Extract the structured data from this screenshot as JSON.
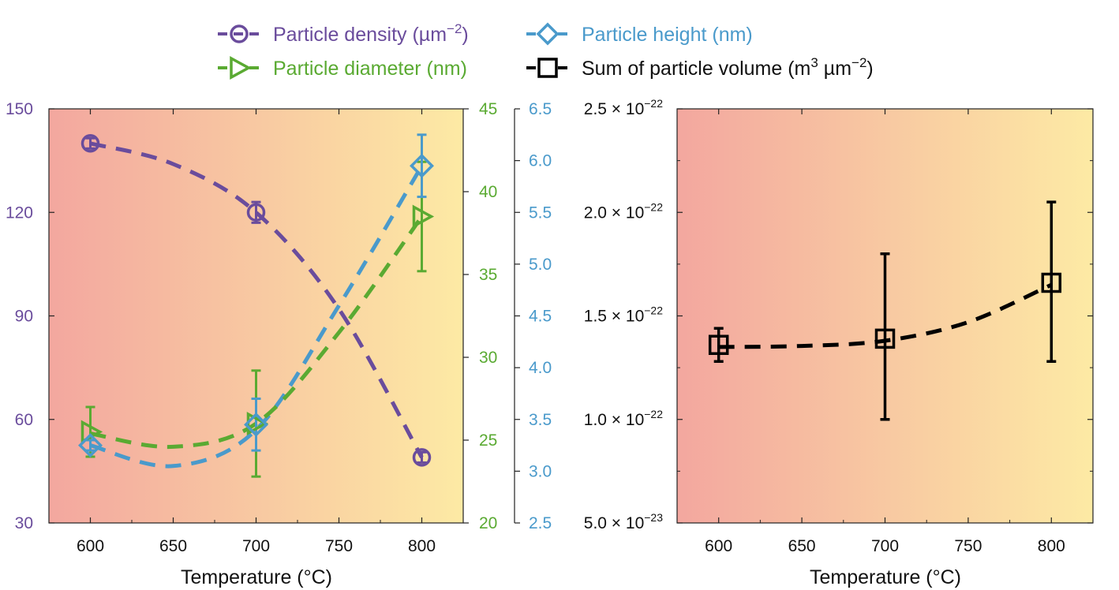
{
  "colors": {
    "density": "#6a4c9c",
    "diameter": "#5aaa32",
    "height": "#4a9acb",
    "volume": "#000000",
    "bg_left": "#f3a79f",
    "bg_right": "#fdeaa4"
  },
  "legend": {
    "density": "Particle density (µm",
    "density_exp": "−2",
    "density_close": ")",
    "height": "Particle height (nm)",
    "diameter": "Particle diameter (nm)",
    "volume": "Sum of particle volume (m",
    "volume_exp1": "3",
    "volume_mid": " µm",
    "volume_exp2": "−2",
    "volume_close": ")"
  },
  "chart_data": [
    {
      "type": "line",
      "xlabel": "Temperature (°C)",
      "xlim": [
        575,
        825
      ],
      "x_ticks": [
        600,
        650,
        700,
        750,
        800
      ],
      "x": [
        600,
        700,
        800
      ],
      "axes": {
        "density": {
          "ylim": [
            30,
            150
          ],
          "ticks": [
            30,
            60,
            90,
            120,
            150
          ]
        },
        "diameter": {
          "ylim": [
            20,
            45
          ],
          "ticks": [
            20,
            25,
            30,
            35,
            40,
            45
          ]
        },
        "height": {
          "ylim": [
            2.5,
            6.5
          ],
          "ticks": [
            "2.5",
            "3.0",
            "3.5",
            "4.0",
            "4.5",
            "5.0",
            "5.5",
            "6.0",
            "6.5"
          ]
        }
      },
      "series": [
        {
          "name": "Particle density (µm−2)",
          "key": "density",
          "axis": "density",
          "marker": "circle",
          "values": [
            140,
            120,
            49
          ],
          "err": [
            1.5,
            3,
            1.5
          ],
          "fit": [
            [
              600,
              140
            ],
            [
              650,
              134
            ],
            [
              700,
              120
            ],
            [
              750,
              92
            ],
            [
              800,
              49
            ]
          ]
        },
        {
          "name": "Particle diameter (nm)",
          "key": "diameter",
          "axis": "diameter",
          "marker": "triangle",
          "values": [
            25.5,
            26,
            38.5
          ],
          "err": [
            1.5,
            3.2,
            3.3
          ],
          "fit": [
            [
              600,
              25.4
            ],
            [
              650,
              24.6
            ],
            [
              700,
              26
            ],
            [
              750,
              31.5
            ],
            [
              800,
              38.5
            ]
          ]
        },
        {
          "name": "Particle height (nm)",
          "key": "height",
          "axis": "height",
          "marker": "diamond",
          "values": [
            3.25,
            3.45,
            5.95
          ],
          "err": [
            0.05,
            0.25,
            0.3
          ],
          "fit": [
            [
              600,
              3.25
            ],
            [
              650,
              3.05
            ],
            [
              700,
              3.4
            ],
            [
              750,
              4.6
            ],
            [
              800,
              5.95
            ]
          ]
        }
      ]
    },
    {
      "type": "line",
      "xlabel": "Temperature (°C)",
      "xlim": [
        575,
        825
      ],
      "x_ticks": [
        600,
        650,
        700,
        750,
        800
      ],
      "x": [
        600,
        700,
        800
      ],
      "ylim": [
        5e-23,
        2.5e-22
      ],
      "y_ticks": [
        {
          "mant": "5.0",
          "exp": "−23",
          "v": 5e-23
        },
        {
          "mant": "1.0",
          "exp": "−22",
          "v": 1e-22
        },
        {
          "mant": "1.5",
          "exp": "−22",
          "v": 1.5e-22
        },
        {
          "mant": "2.0",
          "exp": "−22",
          "v": 2e-22
        },
        {
          "mant": "2.5",
          "exp": "−22",
          "v": 2.5e-22
        }
      ],
      "series": [
        {
          "name": "Sum of particle volume (m3 µm−2)",
          "key": "volume",
          "marker": "square",
          "values": [
            1.36e-22,
            1.39e-22,
            1.66e-22
          ],
          "err_low": [
            1.28e-22,
            1e-22,
            1.28e-22
          ],
          "err_high": [
            1.44e-22,
            1.8e-22,
            2.05e-22
          ],
          "fit": [
            [
              600,
              1.35e-22
            ],
            [
              650,
              1.355e-22
            ],
            [
              700,
              1.38e-22
            ],
            [
              750,
              1.47e-22
            ],
            [
              800,
              1.65e-22
            ]
          ]
        }
      ]
    }
  ]
}
